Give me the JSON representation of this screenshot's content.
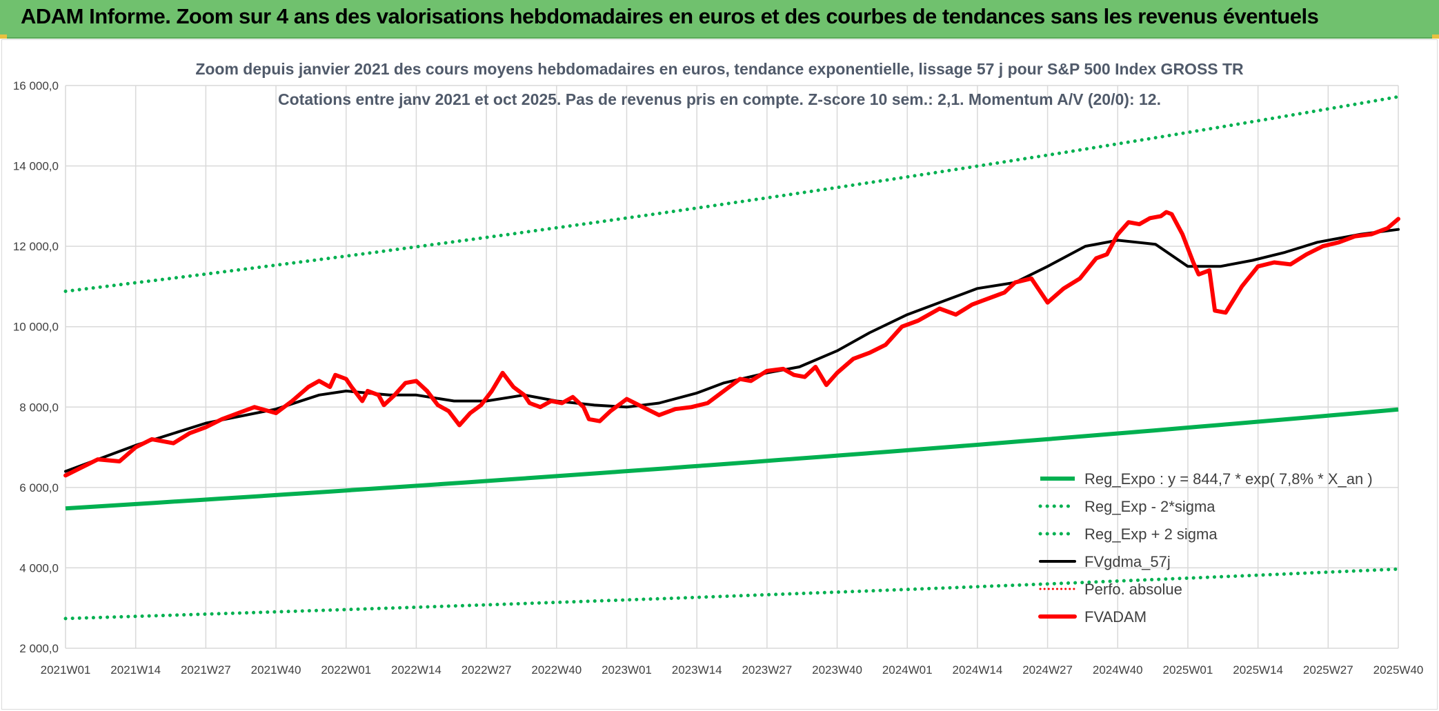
{
  "banner": {
    "title": "ADAM Informe. Zoom sur 4 ans des valorisations hebdomadaires en euros et des courbes de tendances sans les revenus éventuels"
  },
  "colors": {
    "banner_bg": "#70c16e",
    "reg_expo": "#00b050",
    "bands": "#00b050",
    "fvgdma": "#000000",
    "perfo": "#ff0000",
    "fvadam": "#ff0000",
    "grid": "#d9d9d9"
  },
  "chart_data": {
    "type": "line",
    "title": "Zoom depuis janvier 2021 des cours moyens hebdomadaires en euros, tendance exponentielle, lissage 57 j pour S&P 500 Index GROSS TR",
    "subtitle": "Cotations entre janv 2021 et oct 2025. Pas de revenus pris en compte. Z-score 10 sem.: 2,1. Momentum A/V (20/0): 12.",
    "xlabel": "",
    "ylabel": "",
    "ylim": [
      2000,
      16000
    ],
    "yticks": [
      "2 000,0",
      "4 000,0",
      "6 000,0",
      "8 000,0",
      "10 000,0",
      "12 000,0",
      "14 000,0",
      "16 000,0"
    ],
    "xticks": [
      "2021W01",
      "2021W14",
      "2021W27",
      "2021W40",
      "2022W01",
      "2022W14",
      "2022W27",
      "2022W40",
      "2023W01",
      "2023W14",
      "2023W27",
      "2023W40",
      "2024W01",
      "2024W14",
      "2024W27",
      "2024W40",
      "2025W01",
      "2025W14",
      "2025W27",
      "2025W40"
    ],
    "legend_position": "bottom-right",
    "series": [
      {
        "name": "Reg_Expo : y = 844,7 * exp( 7,8% *  X_an )",
        "style": "solid-thick-green",
        "x": [
          0,
          247
        ],
        "values": [
          5480,
          7940
        ]
      },
      {
        "name": "Reg_Exp - 2*sigma",
        "style": "dotted-green",
        "x": [
          0,
          247
        ],
        "values": [
          2740,
          3970
        ]
      },
      {
        "name": "Reg_Exp + 2 sigma",
        "style": "dotted-green",
        "x": [
          0,
          247
        ],
        "values": [
          10880,
          15720
        ]
      },
      {
        "name": "FVgdma_57j",
        "style": "solid-black",
        "x": [
          0,
          13,
          26,
          39,
          47,
          52,
          60,
          65,
          72,
          78,
          85,
          91,
          98,
          104,
          110,
          117,
          122,
          130,
          136,
          143,
          149,
          156,
          163,
          169,
          176,
          182,
          189,
          195,
          202,
          208,
          214,
          220,
          226,
          232,
          236,
          240,
          243,
          247
        ],
        "values": [
          6400,
          7050,
          7600,
          7950,
          8300,
          8400,
          8300,
          8300,
          8150,
          8150,
          8300,
          8150,
          8050,
          8000,
          8100,
          8350,
          8600,
          8850,
          9000,
          9400,
          9850,
          10300,
          10650,
          10950,
          11100,
          11500,
          12000,
          12150,
          12050,
          11500,
          11500,
          11650,
          11850,
          12100,
          12200,
          12300,
          12350,
          12420
        ]
      },
      {
        "name": "Perfo. absolue",
        "style": "dotted-red",
        "x": [],
        "values": []
      },
      {
        "name": "FVADAM",
        "style": "solid-thick-red",
        "x": [
          0,
          3,
          6,
          10,
          13,
          16,
          18,
          20,
          23,
          26,
          29,
          32,
          35,
          39,
          42,
          45,
          47,
          49,
          50,
          52,
          53,
          55,
          56,
          58,
          59,
          61,
          63,
          65,
          67,
          69,
          71,
          73,
          75,
          77,
          79,
          81,
          83,
          85,
          86,
          88,
          90,
          92,
          94,
          96,
          97,
          99,
          101,
          103,
          104,
          107,
          110,
          113,
          116,
          119,
          121,
          123,
          125,
          127,
          130,
          133,
          135,
          137,
          139,
          141,
          143,
          146,
          149,
          152,
          155,
          158,
          162,
          165,
          168,
          170,
          172,
          174,
          176,
          179,
          182,
          185,
          188,
          191,
          193,
          195,
          197,
          199,
          201,
          203,
          204,
          205,
          207,
          209,
          210,
          212,
          213,
          215,
          218,
          221,
          224,
          227,
          230,
          233,
          236,
          239,
          242,
          245,
          247
        ],
        "values": [
          6300,
          6500,
          6700,
          6650,
          7000,
          7200,
          7150,
          7100,
          7350,
          7500,
          7700,
          7850,
          8000,
          7850,
          8150,
          8500,
          8650,
          8500,
          8800,
          8700,
          8500,
          8150,
          8400,
          8300,
          8050,
          8300,
          8600,
          8650,
          8400,
          8050,
          7900,
          7550,
          7850,
          8050,
          8400,
          8850,
          8500,
          8300,
          8100,
          8000,
          8150,
          8100,
          8250,
          8000,
          7700,
          7650,
          7900,
          8100,
          8200,
          8000,
          7800,
          7950,
          8000,
          8100,
          8300,
          8500,
          8700,
          8650,
          8900,
          8950,
          8800,
          8750,
          9000,
          8550,
          8850,
          9200,
          9350,
          9550,
          10000,
          10150,
          10450,
          10300,
          10550,
          10650,
          10750,
          10850,
          11100,
          11200,
          10600,
          10950,
          11200,
          11700,
          11800,
          12300,
          12600,
          12550,
          12700,
          12750,
          12850,
          12800,
          12300,
          11600,
          11300,
          11400,
          10400,
          10350,
          11000,
          11500,
          11600,
          11550,
          11800,
          12000,
          12100,
          12250,
          12300,
          12450,
          12680
        ]
      }
    ]
  }
}
